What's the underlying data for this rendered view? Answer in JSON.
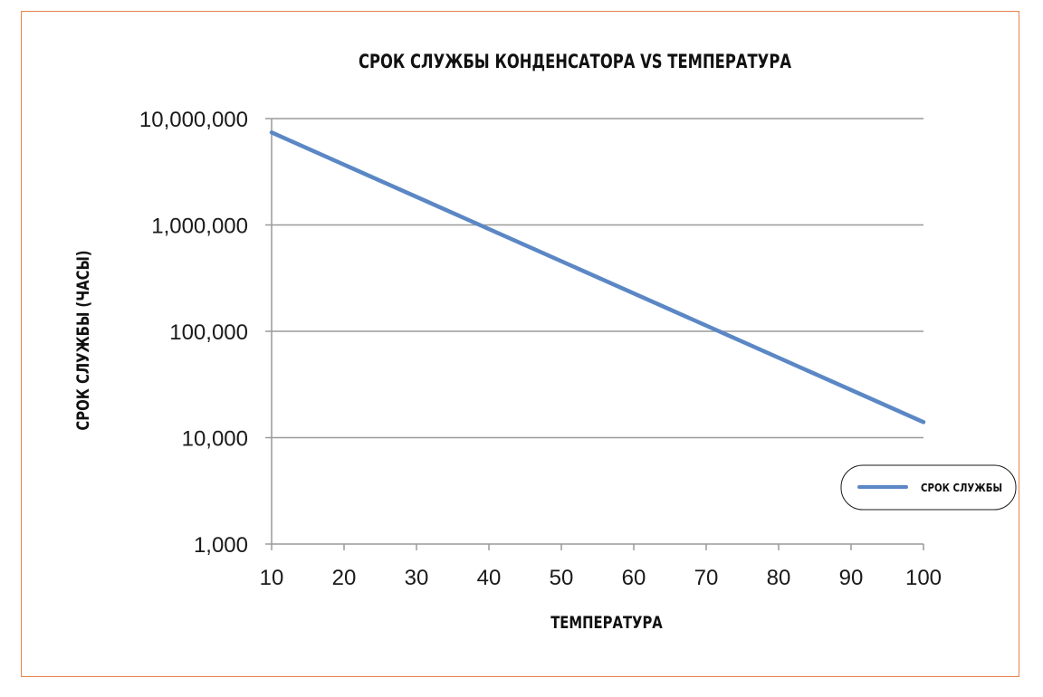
{
  "chart_data": {
    "type": "line",
    "title": "СРОК СЛУЖБЫ КОНДЕНСАТОРА VS ТЕМПЕРАТУРА",
    "xlabel": "ТЕМПЕРАТУРА",
    "ylabel": "СРОК СЛУЖБЫ (ЧАСЫ)",
    "xlim": [
      10,
      100
    ],
    "ylim": [
      1000,
      10000000
    ],
    "y_scale": "log",
    "x_ticks": [
      "10",
      "20",
      "30",
      "40",
      "50",
      "60",
      "70",
      "80",
      "90",
      "100"
    ],
    "y_ticks": [
      "1,000",
      "10,000",
      "100,000",
      "1,000,000",
      "10,000,000"
    ],
    "grid": "horizontal",
    "legend_position": "right",
    "series": [
      {
        "name": "СРОК СЛУЖБЫ",
        "color": "#5b87c5",
        "x": [
          10,
          100
        ],
        "y": [
          7400000,
          14000
        ]
      }
    ]
  }
}
